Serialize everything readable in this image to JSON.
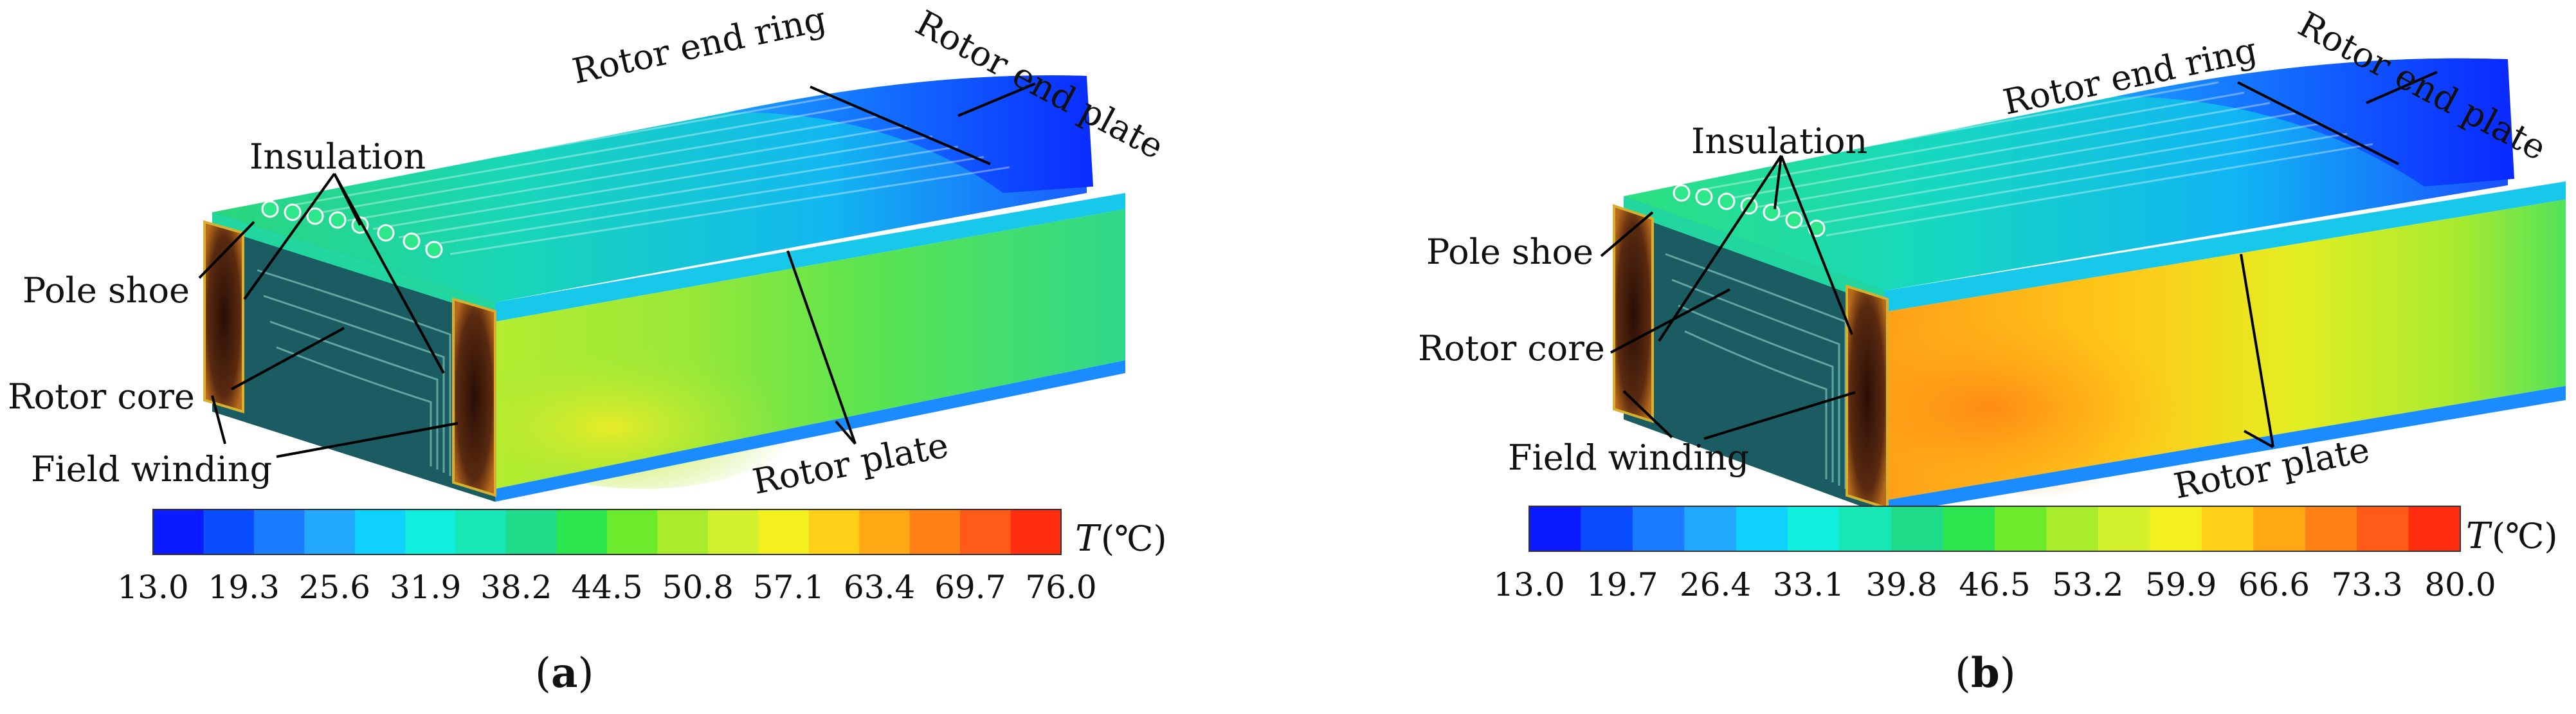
{
  "panels": [
    {
      "caption": {
        "open": "(",
        "letter": "a",
        "close": ")"
      },
      "labels": {
        "insulation": "Insulation",
        "rotor_end_ring": "Rotor end ring",
        "rotor_end_plate": "Rotor end plate",
        "pole_shoe": "Pole shoe",
        "rotor_core": "Rotor core",
        "field_winding": "Field winding",
        "rotor_plate": "Rotor plate"
      },
      "colorbar": {
        "unit_symbol": "T",
        "unit": "(℃)",
        "ticks": [
          "13.0",
          "19.3",
          "25.6",
          "31.9",
          "38.2",
          "44.5",
          "50.8",
          "57.1",
          "63.4",
          "69.7",
          "76.0"
        ],
        "min": 13.0,
        "max": 76.0
      }
    },
    {
      "caption": {
        "open": "(",
        "letter": "b",
        "close": ")"
      },
      "labels": {
        "insulation": "Insulation",
        "rotor_end_ring": "Rotor end ring",
        "rotor_end_plate": "Rotor end plate",
        "pole_shoe": "Pole shoe",
        "rotor_core": "Rotor core",
        "field_winding": "Field winding",
        "rotor_plate": "Rotor plate"
      },
      "colorbar": {
        "unit_symbol": "T",
        "unit": "(℃)",
        "ticks": [
          "13.0",
          "19.7",
          "26.4",
          "33.1",
          "39.8",
          "46.5",
          "53.2",
          "59.9",
          "66.6",
          "73.3",
          "80.0"
        ],
        "min": 13.0,
        "max": 80.0
      }
    }
  ],
  "colors": {
    "scale": [
      "#0a1cff",
      "#0a4cff",
      "#1a7cff",
      "#22a8ff",
      "#10d2ff",
      "#10eede",
      "#18e6b4",
      "#20dc8a",
      "#2ce650",
      "#6cea2c",
      "#a8ec2c",
      "#d2f02c",
      "#f4f020",
      "#ffd016",
      "#ffa814",
      "#ff8014",
      "#ff5a18",
      "#ff2e10"
    ],
    "dark_winding": "#3a1a0c",
    "core_teal": "#1a5c62"
  }
}
